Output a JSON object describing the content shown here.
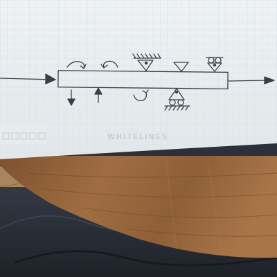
{
  "photo": {
    "paper": {
      "watermark_text": "WHITELINES",
      "color_paper": "#e9eef1",
      "color_grid": "#d3dde4"
    },
    "sketch": {
      "color_ink": "#3a3f47",
      "symbols": [
        "input-arrow",
        "beam-rectangle",
        "output-arrow",
        "moment-arrow-clockwise",
        "moment-arrow-counterclockwise",
        "fixed-hinge-support-top",
        "triangle-support",
        "roller-support-top",
        "force-arrow-down",
        "force-arrow-up",
        "moment-arrow-lower",
        "roller-support-bottom"
      ]
    },
    "table": {
      "color_wood": "#9a6a40",
      "color_wood_dark": "#6e4a2a"
    },
    "floor": {
      "color_floor": "#a8865e"
    },
    "clothing": {
      "color_fabric": "#2a2f36"
    }
  }
}
